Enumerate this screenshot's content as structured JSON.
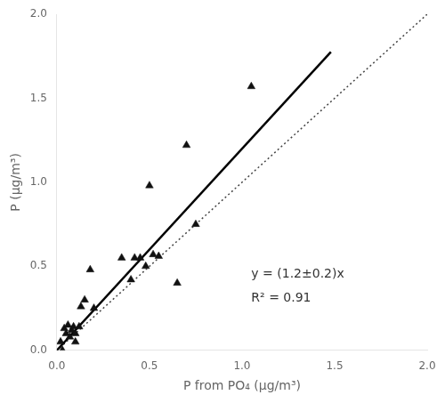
{
  "chart_data": {
    "type": "scatter",
    "x_label": "P from PO₄ (μg/m³)",
    "y_label": "P (μg/m³)",
    "xlim": [
      0.0,
      2.0
    ],
    "ylim": [
      0.0,
      2.0
    ],
    "xticks": [
      {
        "value": 0.0,
        "label": "0.0"
      },
      0.5,
      {
        "value": 1.0,
        "label": "1.0"
      },
      1.5,
      {
        "value": 2.0,
        "label": "2.0"
      }
    ],
    "yticks": [
      {
        "value": 0.0,
        "label": "0.0"
      },
      0.5,
      {
        "value": 1.0,
        "label": "1.0"
      },
      1.5,
      {
        "value": 2.0,
        "label": "2.0"
      }
    ],
    "grid": false,
    "series": [
      {
        "type": "line",
        "line_style": "dotted",
        "color": "#444444",
        "x": [
          0.0,
          2.0
        ],
        "values": [
          0.0,
          2.0
        ]
      },
      {
        "type": "line",
        "line_style": "solid",
        "color": "#000000",
        "x": [
          0.0,
          1.48
        ],
        "values": [
          0.0,
          1.776
        ]
      },
      {
        "type": "scatter",
        "marker": "triangle",
        "color": "#111111",
        "x": [
          0.02,
          0.03,
          0.04,
          0.05,
          0.06,
          0.07,
          0.08,
          0.09,
          0.1,
          0.1,
          0.12,
          0.13,
          0.15,
          0.18,
          0.2,
          0.35,
          0.4,
          0.42,
          0.45,
          0.48,
          0.5,
          0.52,
          0.55,
          0.65,
          0.7,
          0.75,
          1.05
        ],
        "values": [
          0.05,
          0.0,
          0.13,
          0.1,
          0.15,
          0.08,
          0.12,
          0.14,
          0.1,
          0.05,
          0.14,
          0.26,
          0.3,
          0.48,
          0.25,
          0.55,
          0.42,
          0.55,
          0.55,
          0.5,
          0.98,
          0.57,
          0.56,
          0.4,
          1.22,
          0.75,
          1.57
        ]
      }
    ],
    "annotations": [
      {
        "text": "y = (1.2±0.2)x",
        "x": 1.05,
        "y": 0.45
      },
      {
        "text": "R² = 0.91",
        "x": 1.05,
        "y": 0.31
      }
    ]
  }
}
